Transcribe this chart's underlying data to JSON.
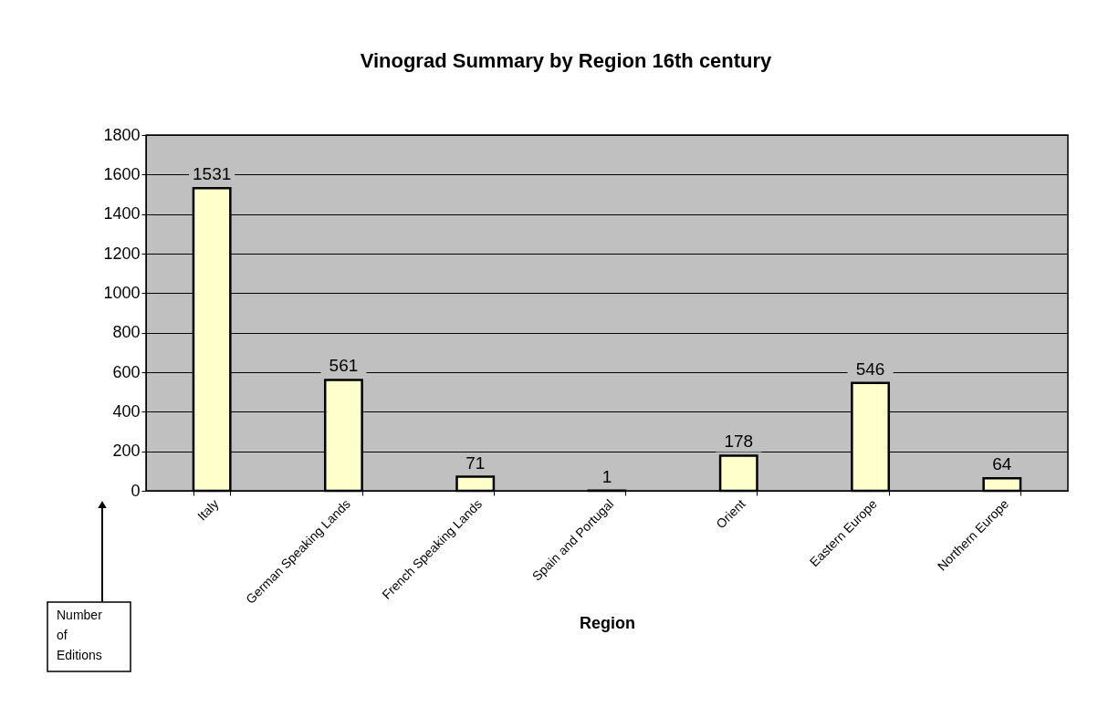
{
  "chart_data": {
    "type": "bar",
    "title": "Vinograd Summary by Region 16th  century",
    "xlabel": "Region",
    "ylabel": "Number of Editions",
    "categories": [
      "Italy",
      "German Speaking Lands",
      "French Speaking Lands",
      "Spain and Portugal",
      "Orient",
      "Eastern Europe",
      "Northern Europe"
    ],
    "values": [
      1531,
      561,
      71,
      1,
      178,
      546,
      64
    ],
    "color": "#ffffcc",
    "ylim": [
      0,
      1800
    ],
    "yticks": [
      0,
      200,
      400,
      600,
      800,
      1000,
      1200,
      1400,
      1600,
      1800
    ],
    "grid": "y",
    "data_labels": true
  }
}
